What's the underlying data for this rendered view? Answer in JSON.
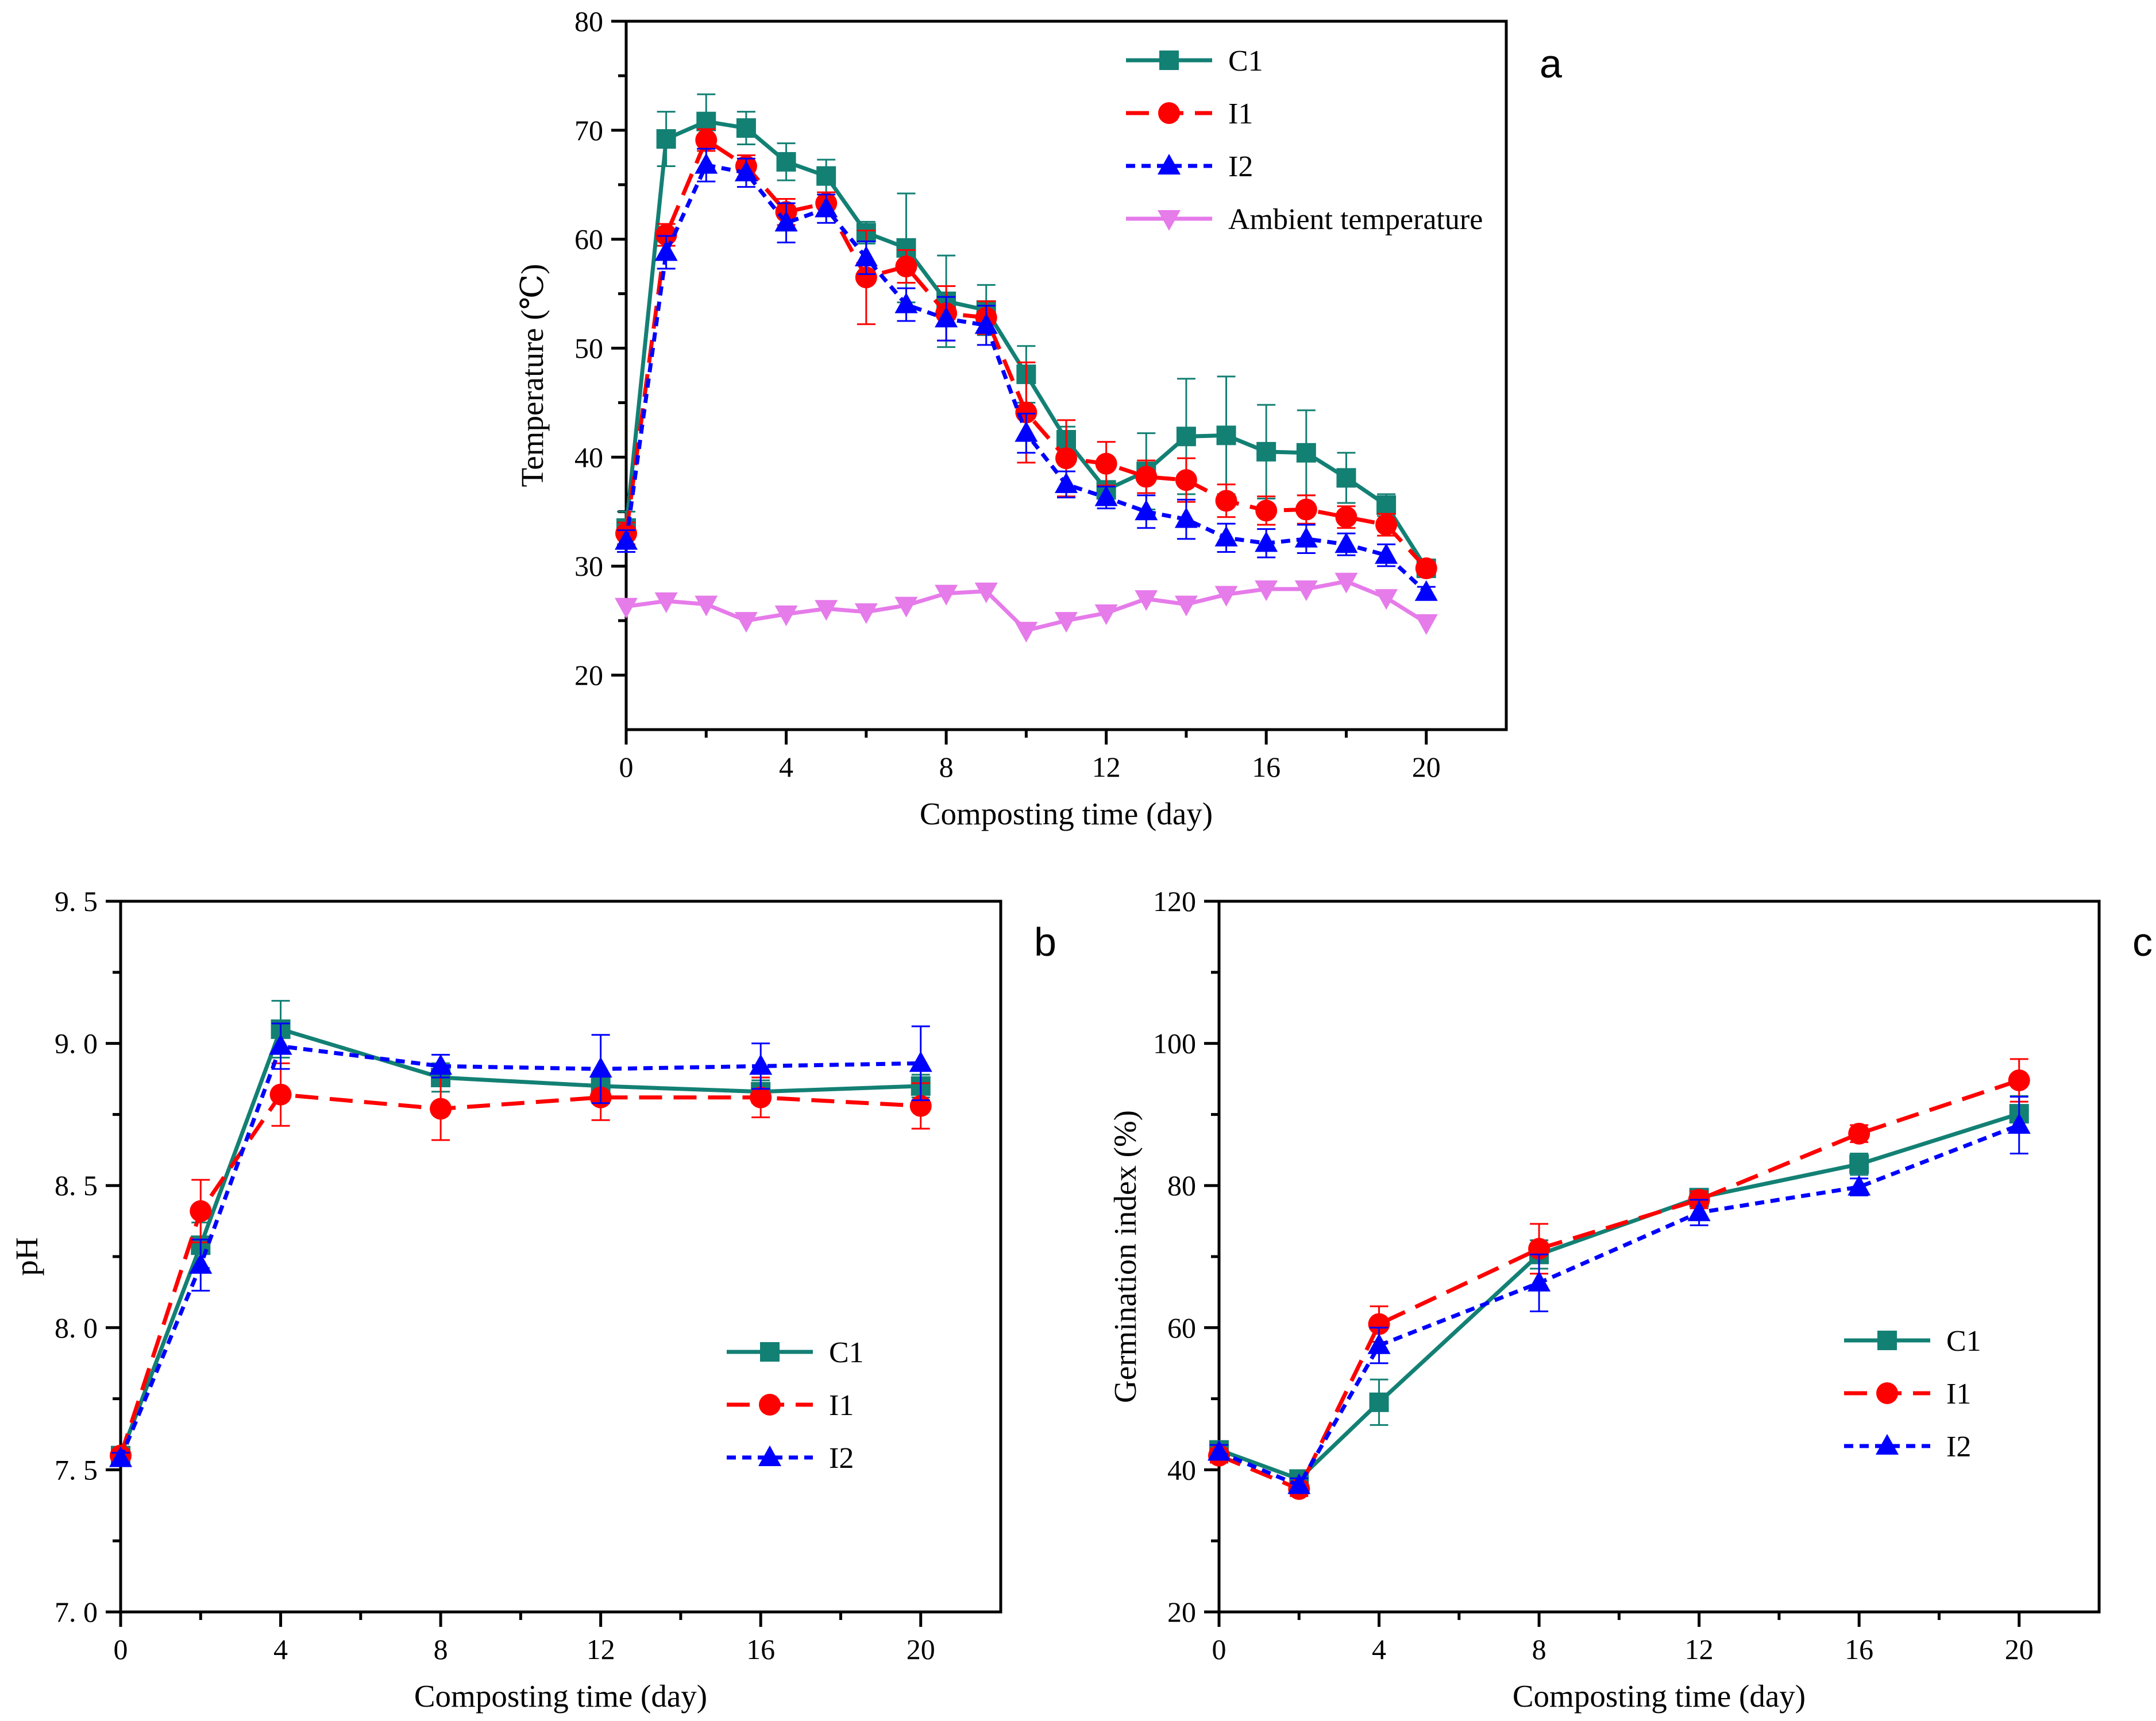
{
  "colors": {
    "C1": "#138074",
    "I1": "#ff0000",
    "I2": "#0000ff",
    "Ambient": "#e67bea"
  },
  "chart_data": [
    {
      "id": "a",
      "type": "line",
      "panel_label": "a",
      "title": "",
      "xlabel": "Composting time (day)",
      "ylabel": "Temperature (℃)",
      "xlim": [
        0,
        22
      ],
      "ylim": [
        15,
        80
      ],
      "xticks": [
        0,
        4,
        8,
        12,
        16,
        20
      ],
      "yticks": [
        20,
        30,
        40,
        50,
        60,
        70,
        80
      ],
      "grid": false,
      "legend_position": "top-right",
      "series": [
        {
          "name": "C1",
          "key": "C1",
          "marker": "square",
          "dash": "solid",
          "x": [
            0,
            1,
            2,
            3,
            4,
            5,
            6,
            7,
            8,
            9,
            10,
            11,
            12,
            13,
            14,
            15,
            16,
            17,
            18,
            19,
            20
          ],
          "values": [
            33.5,
            69.2,
            70.8,
            70.2,
            67.1,
            65.8,
            60.6,
            59.2,
            54.3,
            53.5,
            47.6,
            41.6,
            37.0,
            38.7,
            41.9,
            42.0,
            40.5,
            40.4,
            38.1,
            35.6,
            29.8
          ],
          "errors": [
            1.5,
            2.5,
            2.5,
            1.5,
            1.7,
            1.5,
            1.0,
            5.0,
            4.2,
            2.3,
            2.6,
            1.2,
            0.8,
            3.5,
            5.3,
            5.4,
            4.3,
            3.9,
            2.3,
            1.0,
            0.5
          ]
        },
        {
          "name": "I1",
          "key": "I1",
          "marker": "circle",
          "dash": "dashed",
          "x": [
            0,
            1,
            2,
            3,
            4,
            5,
            6,
            7,
            8,
            9,
            10,
            11,
            12,
            13,
            14,
            15,
            16,
            17,
            18,
            19,
            20
          ],
          "values": [
            33.0,
            60.4,
            69.1,
            66.7,
            62.5,
            63.3,
            56.5,
            57.5,
            53.2,
            52.8,
            44.1,
            39.9,
            39.4,
            38.2,
            37.9,
            36.0,
            35.1,
            35.2,
            34.5,
            33.8,
            29.8
          ],
          "errors": [
            1.0,
            1.0,
            1.0,
            1.0,
            1.2,
            1.0,
            4.3,
            1.5,
            2.5,
            1.5,
            4.6,
            3.5,
            2.0,
            1.5,
            2.0,
            1.5,
            1.3,
            1.3,
            1.0,
            1.0,
            0.5
          ]
        },
        {
          "name": "I2",
          "key": "I2",
          "marker": "triangle",
          "dash": "dotted",
          "x": [
            0,
            1,
            2,
            3,
            4,
            5,
            6,
            7,
            8,
            9,
            10,
            11,
            12,
            13,
            14,
            15,
            16,
            17,
            18,
            19,
            20
          ],
          "values": [
            32.3,
            58.8,
            66.8,
            66.1,
            61.5,
            62.8,
            58.3,
            54.0,
            52.7,
            52.1,
            42.2,
            37.5,
            36.3,
            35.0,
            34.3,
            32.6,
            32.1,
            32.5,
            32.0,
            31.0,
            27.6
          ],
          "errors": [
            1.0,
            1.5,
            1.5,
            1.3,
            1.8,
            1.3,
            1.5,
            1.5,
            2.0,
            1.8,
            1.8,
            1.2,
            1.0,
            1.5,
            1.8,
            1.3,
            1.3,
            1.3,
            1.0,
            1.0,
            0.5
          ]
        },
        {
          "name": "Ambient temperature",
          "key": "Ambient",
          "marker": "triangle-down",
          "dash": "solid",
          "x": [
            0,
            1,
            2,
            3,
            4,
            5,
            6,
            7,
            8,
            9,
            10,
            11,
            12,
            13,
            14,
            15,
            16,
            17,
            18,
            19,
            20
          ],
          "values": [
            26.3,
            26.8,
            26.5,
            25.0,
            25.6,
            26.1,
            25.8,
            26.4,
            27.5,
            27.7,
            24.1,
            25.0,
            25.7,
            27.0,
            26.5,
            27.4,
            27.9,
            27.9,
            28.6,
            27.1,
            24.8
          ],
          "errors": []
        }
      ]
    },
    {
      "id": "b",
      "type": "line",
      "panel_label": "b",
      "title": "",
      "xlabel": "Composting time (day)",
      "ylabel": "pH",
      "xlim": [
        0,
        22
      ],
      "ylim": [
        7.0,
        9.5
      ],
      "xticks": [
        0,
        4,
        8,
        12,
        16,
        20
      ],
      "yticks": [
        7.0,
        7.5,
        8.0,
        8.5,
        9.0,
        9.5
      ],
      "ytick_labels": [
        "7. 0",
        "7. 5",
        "8. 0",
        "8. 5",
        "9. 0",
        "9. 5"
      ],
      "grid": false,
      "legend_position": "lower-right",
      "series": [
        {
          "name": "C1",
          "key": "C1",
          "marker": "square",
          "dash": "solid",
          "x": [
            0,
            2,
            4,
            8,
            12,
            16,
            20
          ],
          "values": [
            7.55,
            8.29,
            9.05,
            8.88,
            8.85,
            8.83,
            8.85
          ],
          "errors": [
            0.02,
            0.08,
            0.1,
            0.05,
            0.04,
            0.04,
            0.04
          ]
        },
        {
          "name": "I1",
          "key": "I1",
          "marker": "circle",
          "dash": "dashed",
          "x": [
            0,
            2,
            4,
            8,
            12,
            16,
            20
          ],
          "values": [
            7.55,
            8.41,
            8.82,
            8.77,
            8.81,
            8.81,
            8.78
          ],
          "errors": [
            0.02,
            0.11,
            0.11,
            0.11,
            0.08,
            0.07,
            0.08
          ]
        },
        {
          "name": "I2",
          "key": "I2",
          "marker": "triangle",
          "dash": "dotted",
          "x": [
            0,
            2,
            4,
            8,
            12,
            16,
            20
          ],
          "values": [
            7.54,
            8.22,
            8.99,
            8.92,
            8.91,
            8.92,
            8.93
          ],
          "errors": [
            0.02,
            0.09,
            0.08,
            0.04,
            0.12,
            0.08,
            0.13
          ]
        }
      ]
    },
    {
      "id": "c",
      "type": "line",
      "panel_label": "c",
      "title": "",
      "xlabel": "Composting time (day)",
      "ylabel": "Germination index (%)",
      "xlim": [
        0,
        22
      ],
      "ylim": [
        20,
        120
      ],
      "xticks": [
        0,
        4,
        8,
        12,
        16,
        20
      ],
      "yticks": [
        20,
        40,
        60,
        80,
        100,
        120
      ],
      "grid": false,
      "legend_position": "lower-right",
      "series": [
        {
          "name": "C1",
          "key": "C1",
          "marker": "square",
          "dash": "solid",
          "x": [
            0,
            2,
            4,
            8,
            12,
            16,
            20
          ],
          "values": [
            42.8,
            38.7,
            49.5,
            70.3,
            78.3,
            83.0,
            90.1
          ],
          "errors": [
            1.0,
            1.0,
            3.2,
            2.0,
            1.0,
            1.5,
            2.5
          ]
        },
        {
          "name": "I1",
          "key": "I1",
          "marker": "circle",
          "dash": "dashed",
          "x": [
            0,
            2,
            4,
            8,
            12,
            16,
            20
          ],
          "values": [
            42.0,
            37.3,
            60.5,
            71.1,
            78.0,
            87.3,
            94.8
          ],
          "errors": [
            1.0,
            1.0,
            2.5,
            3.5,
            1.2,
            1.2,
            3.0
          ]
        },
        {
          "name": "I2",
          "key": "I2",
          "marker": "triangle",
          "dash": "dotted",
          "x": [
            0,
            2,
            4,
            8,
            12,
            16,
            20
          ],
          "values": [
            42.5,
            37.8,
            57.5,
            66.3,
            76.2,
            79.8,
            88.5
          ],
          "errors": [
            1.0,
            1.0,
            2.5,
            4.0,
            1.8,
            1.2,
            4.0
          ]
        }
      ]
    }
  ]
}
